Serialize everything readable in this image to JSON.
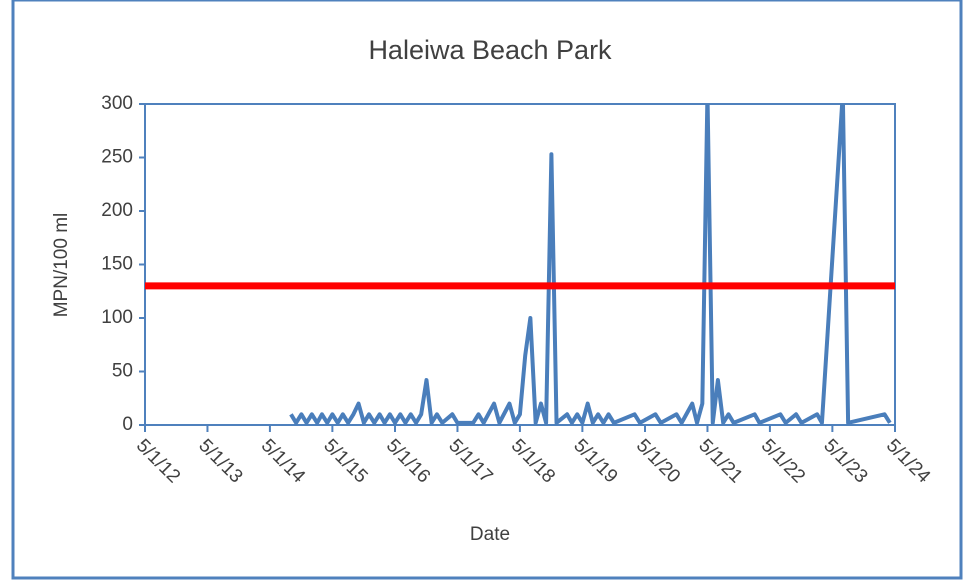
{
  "chart_data": {
    "type": "line",
    "title": "Haleiwa Beach Park",
    "x_label": "Date",
    "y_label": "MPN/100 ml",
    "x": [
      "9/1/14",
      "10/1/14",
      "11/1/14",
      "12/1/14",
      "1/1/15",
      "2/1/15",
      "3/1/15",
      "4/1/15",
      "5/1/15",
      "6/1/15",
      "7/1/15",
      "8/1/15",
      "9/1/15",
      "10/1/15",
      "11/1/15",
      "12/1/15",
      "1/1/16",
      "2/1/16",
      "3/1/16",
      "4/1/16",
      "5/1/16",
      "6/1/16",
      "7/1/16",
      "8/1/16",
      "9/1/16",
      "10/1/16",
      "11/1/16",
      "12/1/16",
      "1/1/17",
      "2/1/17",
      "4/1/17",
      "5/1/17",
      "8/1/17",
      "9/1/17",
      "10/1/17",
      "12/1/17",
      "1/1/18",
      "3/1/18",
      "4/1/18",
      "5/1/18",
      "6/1/18",
      "7/1/18",
      "8/1/18",
      "9/1/18",
      "10/1/18",
      "11/1/18",
      "12/1/18",
      "2/1/19",
      "3/1/19",
      "4/1/19",
      "5/1/19",
      "6/1/19",
      "7/1/19",
      "8/1/19",
      "9/1/19",
      "10/1/19",
      "11/1/19",
      "3/1/20",
      "4/1/20",
      "7/1/20",
      "8/1/20",
      "11/1/20",
      "12/1/20",
      "2/1/21",
      "3/1/21",
      "4/1/21",
      "5/1/21",
      "6/1/21",
      "7/1/21",
      "8/1/21",
      "9/1/21",
      "10/1/21",
      "2/1/22",
      "3/1/22",
      "7/1/22",
      "8/1/22",
      "10/1/22",
      "11/1/22",
      "2/1/23",
      "3/1/23",
      "7/1/23",
      "8/1/23",
      "3/1/24",
      "4/1/24"
    ],
    "series": [
      {
        "color": "#4a7ebb",
        "values": [
          10,
          2,
          10,
          2,
          10,
          2,
          10,
          2,
          10,
          2,
          10,
          2,
          10,
          20,
          2,
          10,
          2,
          10,
          2,
          10,
          2,
          10,
          2,
          10,
          2,
          10,
          42,
          2,
          10,
          2,
          10,
          2,
          2,
          10,
          2,
          20,
          2,
          20,
          2,
          10,
          65,
          100,
          2,
          20,
          2,
          253,
          2,
          10,
          2,
          10,
          2,
          20,
          2,
          10,
          2,
          10,
          2,
          10,
          2,
          10,
          2,
          10,
          2,
          20,
          2,
          20,
          310,
          2,
          42,
          2,
          10,
          2,
          10,
          2,
          10,
          2,
          10,
          2,
          10,
          2,
          310,
          2,
          10,
          2
        ]
      }
    ],
    "threshold": 130,
    "threshold_color": "#ff0000",
    "xlim": [
      "5/1/12",
      "5/1/24"
    ],
    "xticks": [
      "5/1/12",
      "5/1/13",
      "5/1/14",
      "5/1/15",
      "5/1/16",
      "5/1/17",
      "5/1/18",
      "5/1/19",
      "5/1/20",
      "5/1/21",
      "5/1/22",
      "5/1/23",
      "5/1/24"
    ],
    "ylim": [
      0,
      300
    ],
    "yticks": [
      0,
      50,
      100,
      150,
      200,
      250,
      300
    ]
  }
}
